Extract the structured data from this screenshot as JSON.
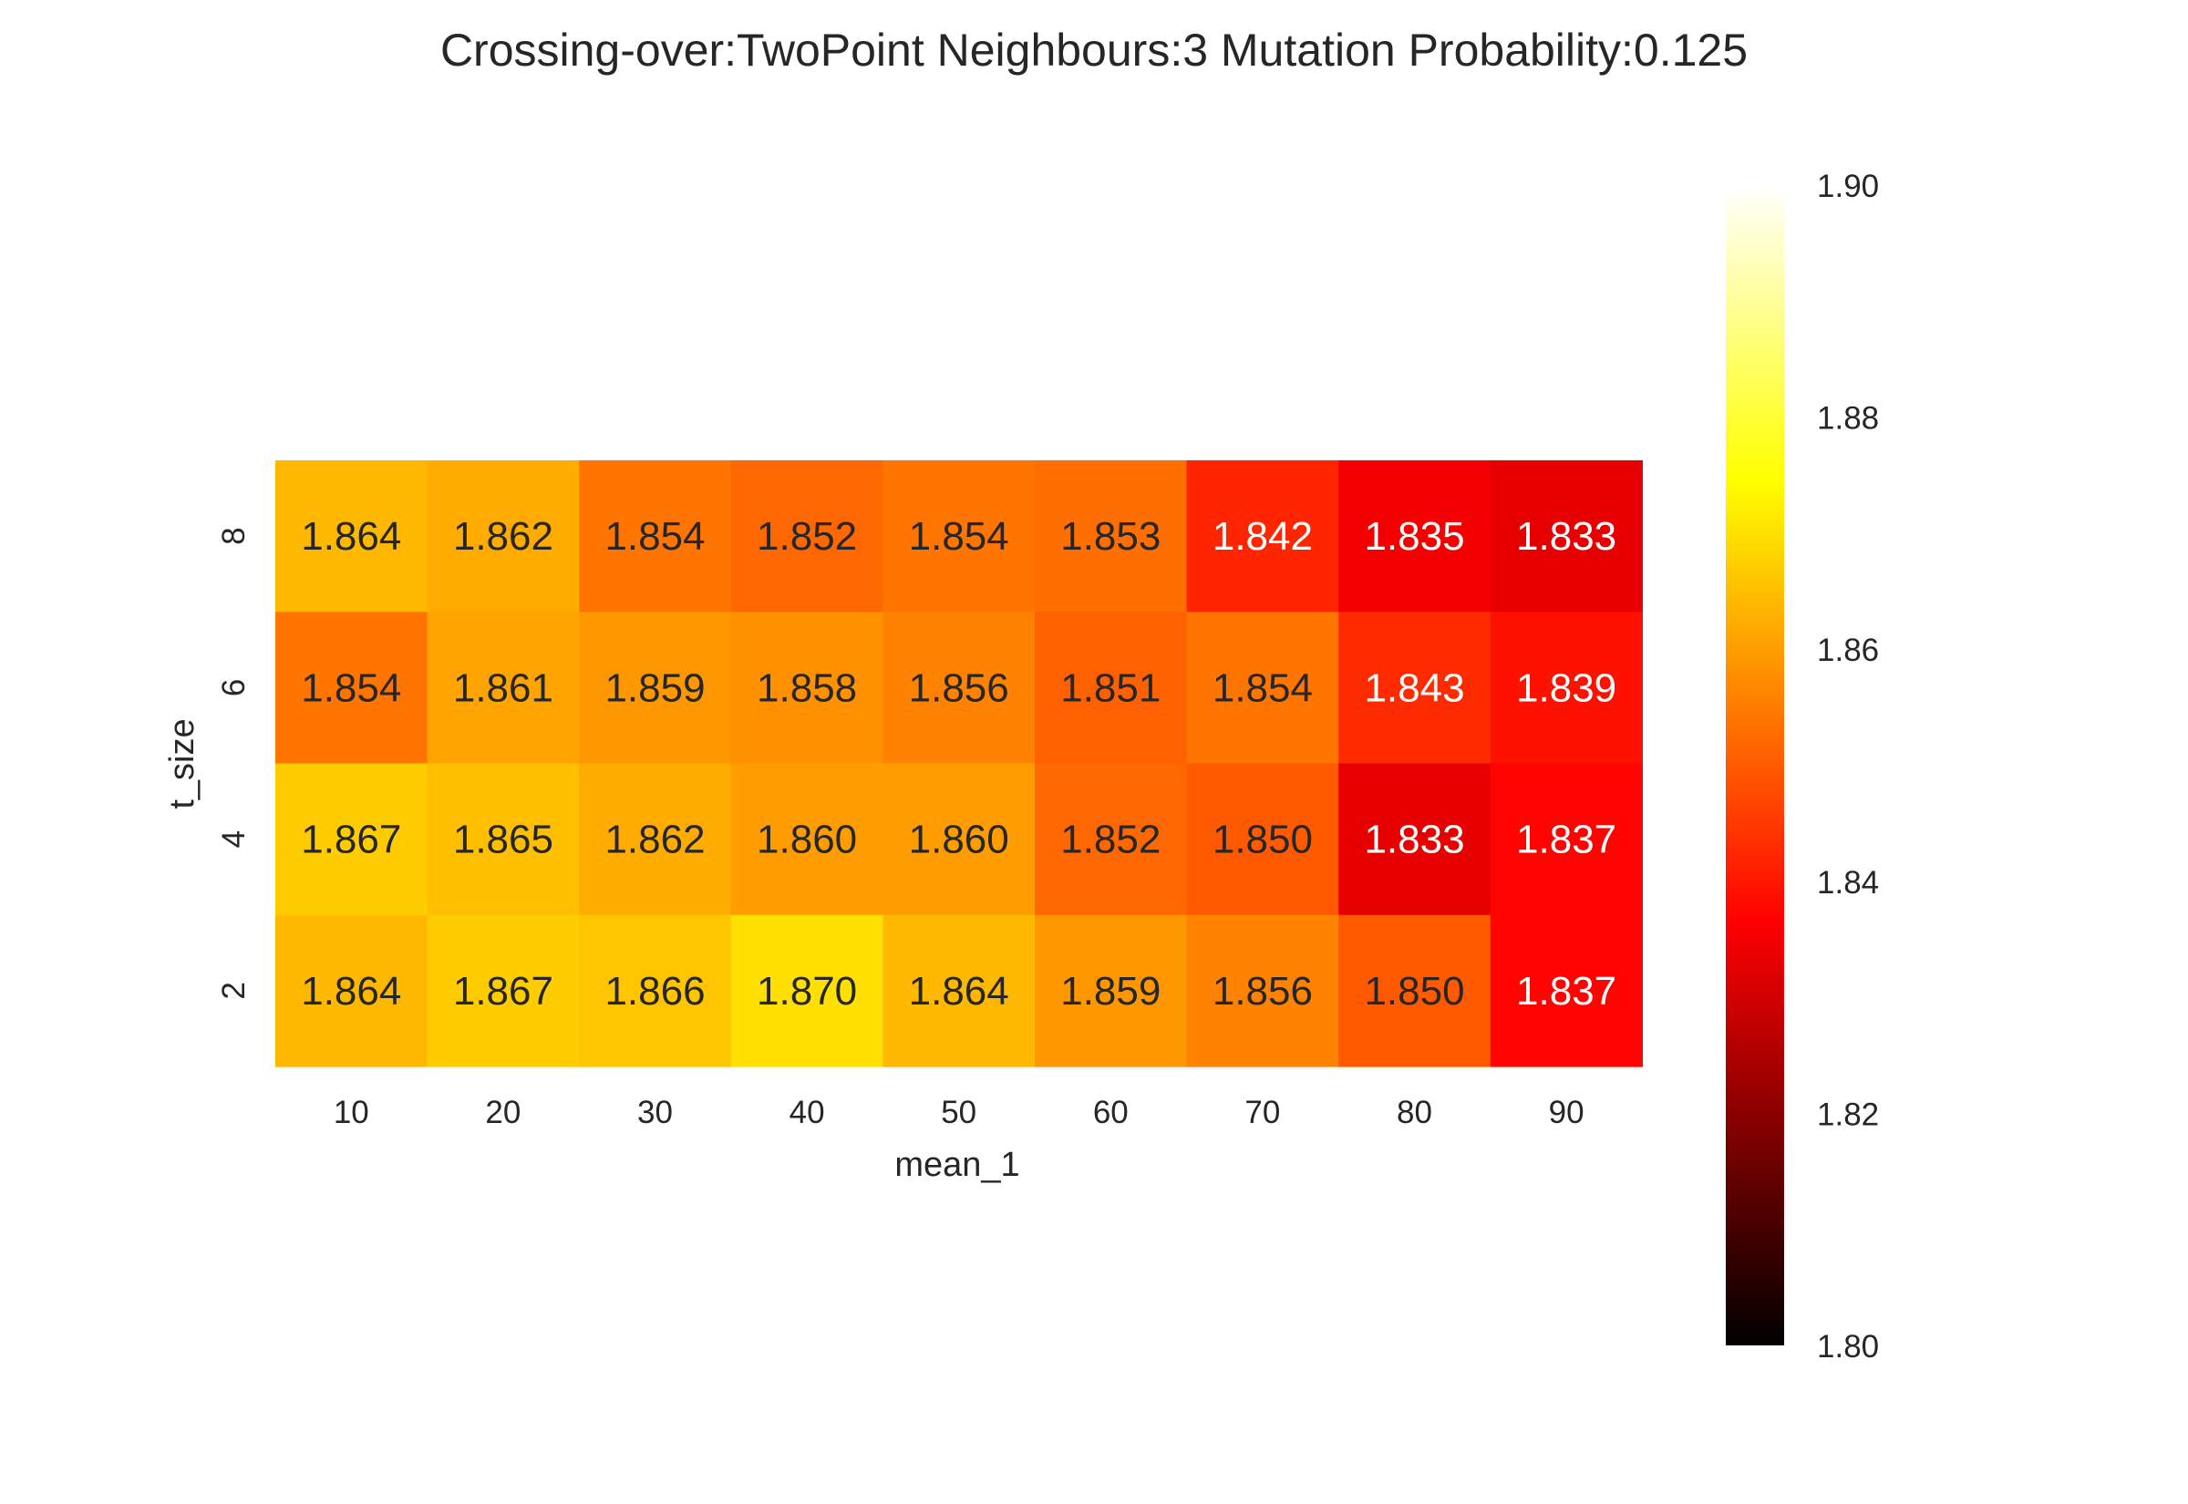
{
  "chart_data": {
    "type": "heatmap",
    "title": "Crossing-over:TwoPoint Neighbours:3 Mutation Probability:0.125",
    "xlabel": "mean_1",
    "ylabel": "t_size",
    "x": [
      "10",
      "20",
      "30",
      "40",
      "50",
      "60",
      "70",
      "80",
      "90"
    ],
    "y": [
      "8",
      "6",
      "4",
      "2"
    ],
    "values": [
      [
        1.864,
        1.862,
        1.854,
        1.852,
        1.854,
        1.853,
        1.842,
        1.835,
        1.833
      ],
      [
        1.854,
        1.861,
        1.859,
        1.858,
        1.856,
        1.851,
        1.854,
        1.843,
        1.839
      ],
      [
        1.867,
        1.865,
        1.862,
        1.86,
        1.86,
        1.852,
        1.85,
        1.833,
        1.837
      ],
      [
        1.864,
        1.867,
        1.866,
        1.87,
        1.864,
        1.859,
        1.856,
        1.85,
        1.837
      ]
    ],
    "value_format_decimals": 3,
    "colormap": "hot",
    "vmin": 1.8,
    "vmax": 1.9,
    "colorbar_ticks": [
      "1.80",
      "1.82",
      "1.84",
      "1.86",
      "1.88",
      "1.90"
    ],
    "grid": false
  }
}
